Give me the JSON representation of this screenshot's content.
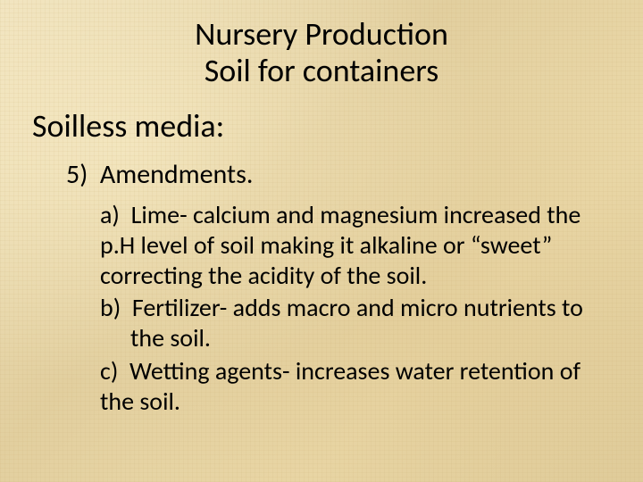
{
  "background": {
    "base_color": "#e8d9b0",
    "texture": "parchment-crosshatch"
  },
  "text_color": "#000000",
  "font_family": "Calibri",
  "title": {
    "line1": "Nursery Production",
    "line2": "Soil for containers",
    "fontsize": 36,
    "align": "center"
  },
  "subtitle": {
    "text": "Soilless media:",
    "fontsize": 36
  },
  "numbered_item": {
    "marker": "5)",
    "text": "Amendments.",
    "fontsize": 30
  },
  "lettered_items": {
    "fontsize": 28,
    "a": {
      "marker": "a)",
      "text": "Lime- calcium and magnesium increased the p.H level of soil making it alkaline or “sweet” correcting the acidity of the soil."
    },
    "b": {
      "marker": "b)",
      "text": "Fertilizer- adds macro and micro nutrients to the soil."
    },
    "c": {
      "marker": "c)",
      "text": "Wetting agents- increases water retention of the soil."
    }
  }
}
